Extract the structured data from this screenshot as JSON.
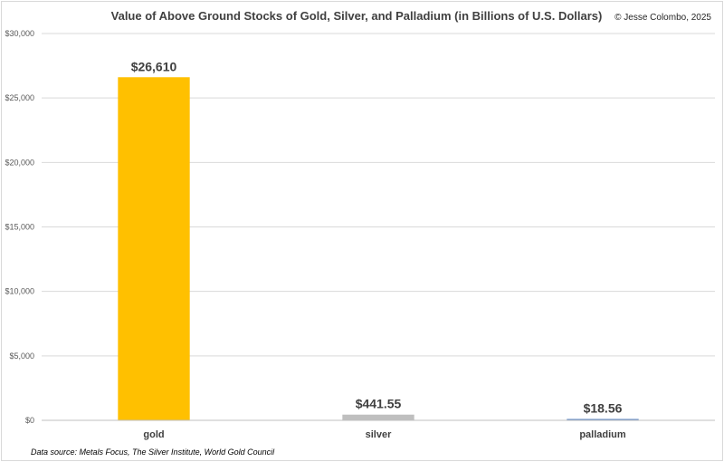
{
  "chart_data": {
    "type": "bar",
    "title": "Value of Above Ground Stocks of Gold, Silver, and Palladium (in Billions of U.S. Dollars)",
    "credit": "© Jesse Colombo, 2025",
    "source": "Data source: Metals Focus, The Silver Institute, World Gold Council",
    "categories": [
      "gold",
      "silver",
      "palladium"
    ],
    "values": [
      26610,
      441.55,
      18.56
    ],
    "data_labels": [
      "$26,610",
      "$441.55",
      "$18.56"
    ],
    "colors": [
      "#ffc000",
      "#bfbfbf",
      "#5b87c5"
    ],
    "ylim": [
      0,
      30000
    ],
    "yticks": [
      0,
      5000,
      10000,
      15000,
      20000,
      25000,
      30000
    ],
    "ytick_labels": [
      "$0",
      "$5,000",
      "$10,000",
      "$15,000",
      "$20,000",
      "$25,000",
      "$30,000"
    ],
    "grid": true,
    "legend": "none"
  }
}
